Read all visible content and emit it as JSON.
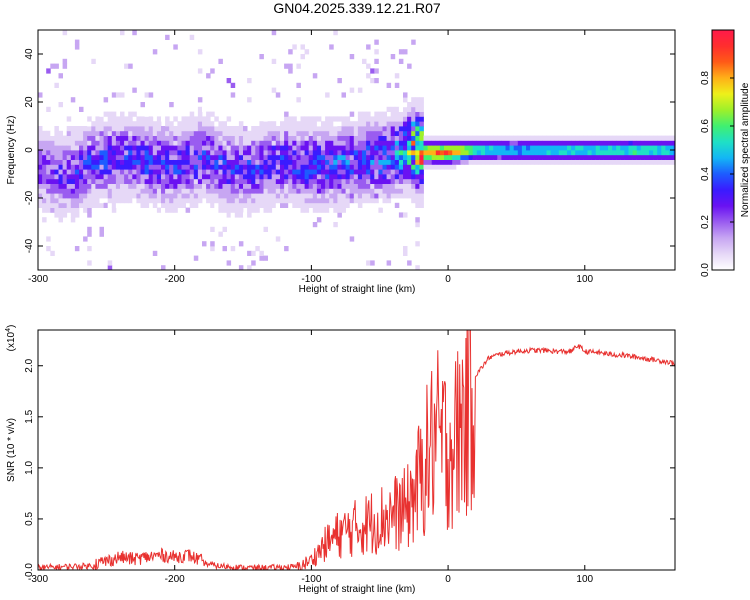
{
  "title": "GN04.2025.339.12.21.R07",
  "colors": {
    "snr_line": "#e8312f",
    "axis": "#000000",
    "colormap": [
      "#ffffff",
      "#e6d8f7",
      "#c7a6f2",
      "#9a5cf0",
      "#6a12f2",
      "#3a1bff",
      "#1d5cff",
      "#13b6f5",
      "#1fe0c6",
      "#40f070",
      "#9ef02a",
      "#eef01a",
      "#ffb018",
      "#ff5a17",
      "#ff2e2e",
      "#ff1a4a"
    ]
  },
  "chart_data": [
    {
      "type": "heatmap",
      "xlabel": "Height of straight line (km)",
      "ylabel": "Frequency (Hz)",
      "xlim": [
        -300,
        166
      ],
      "ylim": [
        -50,
        50
      ],
      "xticks": [
        -300,
        -200,
        -100,
        0,
        100
      ],
      "xtick_labels": [
        "-300",
        "-200",
        "-100",
        "0",
        "100"
      ],
      "yticks": [
        -40,
        -20,
        0,
        20,
        40
      ],
      "ytick_labels": [
        "-40",
        "-20",
        "0",
        "20",
        "40"
      ],
      "grid": false,
      "colorbar": {
        "label": "Normalized spectral amplitude",
        "range": [
          0,
          1
        ],
        "ticks": [
          0.0,
          0.2,
          0.4,
          0.6,
          0.8
        ],
        "tick_labels": [
          "0.0",
          "0.2",
          "0.4",
          "0.6",
          "0.8"
        ]
      },
      "ridge": {
        "x": [
          -300,
          -280,
          -260,
          -240,
          -220,
          -200,
          -180,
          -160,
          -140,
          -120,
          -100,
          -80,
          -60,
          -40,
          -30,
          -20,
          -10,
          0,
          20,
          50,
          80,
          100,
          140,
          166
        ],
        "frequency": [
          -8,
          -12,
          -6,
          -4,
          -6,
          -8,
          -4,
          -10,
          -8,
          -6,
          -8,
          -7,
          -5,
          -3,
          0,
          -2,
          -2,
          -2,
          -1,
          -1,
          -1,
          -1,
          -1,
          -1
        ],
        "amplitude": [
          0.22,
          0.28,
          0.3,
          0.3,
          0.32,
          0.3,
          0.3,
          0.28,
          0.28,
          0.3,
          0.34,
          0.34,
          0.34,
          0.38,
          0.55,
          0.82,
          0.92,
          0.92,
          0.55,
          0.5,
          0.55,
          0.55,
          0.6,
          0.5
        ]
      }
    },
    {
      "type": "line",
      "xlabel": "Height of straight line (km)",
      "ylabel": "SNR (10 * v/v)",
      "y_multiplier": "(x10",
      "y_multiplier_exp": "4",
      "y_multiplier_close": ")",
      "xlim": [
        -300,
        166
      ],
      "ylim": [
        0,
        2.35
      ],
      "xticks": [
        -300,
        -200,
        -100,
        0,
        100
      ],
      "xtick_labels": [
        "-300",
        "-200",
        "-100",
        "0",
        "100"
      ],
      "yticks": [
        0,
        0.5,
        1.0,
        1.5,
        2.0
      ],
      "ytick_labels": [
        "0.0",
        "0.5",
        "1.0",
        "1.5",
        "2.0"
      ],
      "grid": false,
      "series": [
        {
          "x": [
            -300,
            -280,
            -260,
            -250,
            -240,
            -230,
            -220,
            -210,
            -200,
            -190,
            -180,
            -170,
            -160,
            -150,
            -130,
            -110,
            -100,
            -90,
            -80,
            -70,
            -60,
            -50,
            -40,
            -30,
            -25,
            -20,
            -15,
            -10,
            -5,
            0,
            5,
            10,
            20,
            30,
            40,
            50,
            60,
            70,
            80,
            90,
            95,
            100,
            110,
            120,
            130,
            140,
            150,
            160,
            166
          ],
          "y": [
            0.01,
            0.02,
            0.03,
            0.06,
            0.1,
            0.08,
            0.1,
            0.12,
            0.1,
            0.12,
            0.06,
            0.03,
            0.02,
            0.01,
            0.01,
            0.02,
            0.1,
            0.25,
            0.35,
            0.4,
            0.45,
            0.5,
            0.55,
            0.6,
            0.75,
            0.9,
            1.1,
            1.3,
            1.25,
            1.2,
            1.25,
            1.45,
            1.9,
            2.08,
            2.12,
            2.14,
            2.15,
            2.15,
            2.14,
            2.14,
            2.2,
            2.14,
            2.13,
            2.11,
            2.1,
            2.08,
            2.06,
            2.04,
            2.02
          ]
        }
      ]
    }
  ]
}
